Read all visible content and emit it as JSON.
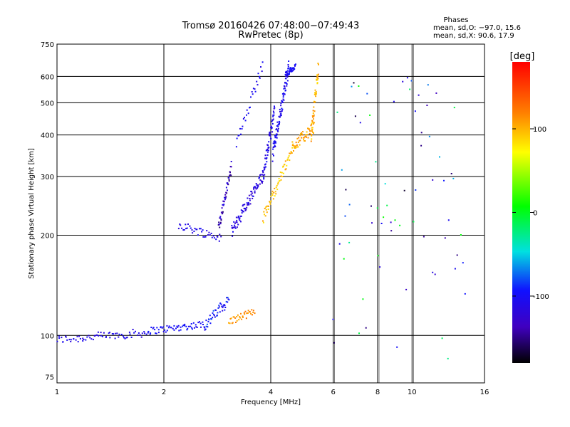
{
  "chart_data": {
    "type": "scatter",
    "title": "Tromsø 20160426 07:48:00−07:49:43",
    "subtitle": "RwPretec (8p)",
    "xlabel": "Frequency [MHz]",
    "ylabel": "Stationary phase Virtual Height [km]",
    "x_scale": "log",
    "y_scale": "log",
    "xlim": [
      1,
      16
    ],
    "ylim": [
      72,
      750
    ],
    "x_ticks": [
      1,
      2,
      4,
      6,
      8,
      10,
      16
    ],
    "y_ticks": [
      75,
      100,
      200,
      300,
      400,
      500,
      600,
      750
    ],
    "grid": true,
    "legend_header": "Phases",
    "legend_lines": [
      "mean, sd,O:  −97.0, 15.6",
      "mean, sd,X:  90.6, 17.9"
    ],
    "colorbar": {
      "label": "[deg]",
      "range": [
        -180,
        180
      ],
      "ticks": [
        100,
        0,
        -100
      ]
    },
    "series": [
      {
        "traces": [
          {
            "x0": 1.0,
            "y0": 97,
            "x1": 1.8,
            "y1": 102,
            "n": 70,
            "p": -110,
            "sp": 10,
            "j": 0.03
          },
          {
            "x0": 1.8,
            "y0": 103,
            "x1": 2.6,
            "y1": 108,
            "n": 60,
            "p": -100,
            "sp": 10,
            "j": 0.025
          },
          {
            "x0": 2.6,
            "y0": 107,
            "x1": 3.05,
            "y1": 128,
            "n": 45,
            "p": -95,
            "sp": 20,
            "j": 0.04
          },
          {
            "x0": 3.05,
            "y0": 110,
            "x1": 3.6,
            "y1": 118,
            "n": 35,
            "p": 110,
            "sp": 15,
            "j": 0.025
          },
          {
            "x0": 2.2,
            "y0": 215,
            "x1": 2.9,
            "y1": 196,
            "n": 40,
            "p": -110,
            "sp": 10,
            "j": 0.03
          },
          {
            "x0": 2.85,
            "y0": 210,
            "x1": 3.1,
            "y1": 320,
            "n": 50,
            "p": -130,
            "sp": 25,
            "j": 0.04
          },
          {
            "x0": 3.1,
            "y0": 205,
            "x1": 3.8,
            "y1": 300,
            "n": 85,
            "p": -115,
            "sp": 15,
            "j": 0.045
          },
          {
            "x0": 3.2,
            "y0": 380,
            "x1": 3.8,
            "y1": 650,
            "n": 30,
            "p": -105,
            "sp": 10,
            "j": 0.04
          },
          {
            "x0": 3.8,
            "y0": 300,
            "x1": 4.1,
            "y1": 470,
            "n": 60,
            "p": -110,
            "sp": 12,
            "j": 0.05
          },
          {
            "x0": 4.05,
            "y0": 350,
            "x1": 4.5,
            "y1": 640,
            "n": 90,
            "p": -105,
            "sp": 12,
            "j": 0.05
          },
          {
            "x0": 4.4,
            "y0": 610,
            "x1": 4.7,
            "y1": 640,
            "n": 35,
            "p": -100,
            "sp": 10,
            "j": 0.02
          },
          {
            "x0": 3.8,
            "y0": 225,
            "x1": 4.6,
            "y1": 360,
            "n": 60,
            "p": 95,
            "sp": 18,
            "j": 0.04
          },
          {
            "x0": 4.6,
            "y0": 370,
            "x1": 5.3,
            "y1": 420,
            "n": 55,
            "p": 105,
            "sp": 15,
            "j": 0.04
          },
          {
            "x0": 5.2,
            "y0": 400,
            "x1": 5.45,
            "y1": 640,
            "n": 45,
            "p": 100,
            "sp": 18,
            "j": 0.05
          },
          {
            "x0": 6.0,
            "y0": 80,
            "x1": 14.0,
            "y1": 600,
            "n": 70,
            "p": -80,
            "sp": 90,
            "j": 0.3
          }
        ]
      }
    ]
  }
}
